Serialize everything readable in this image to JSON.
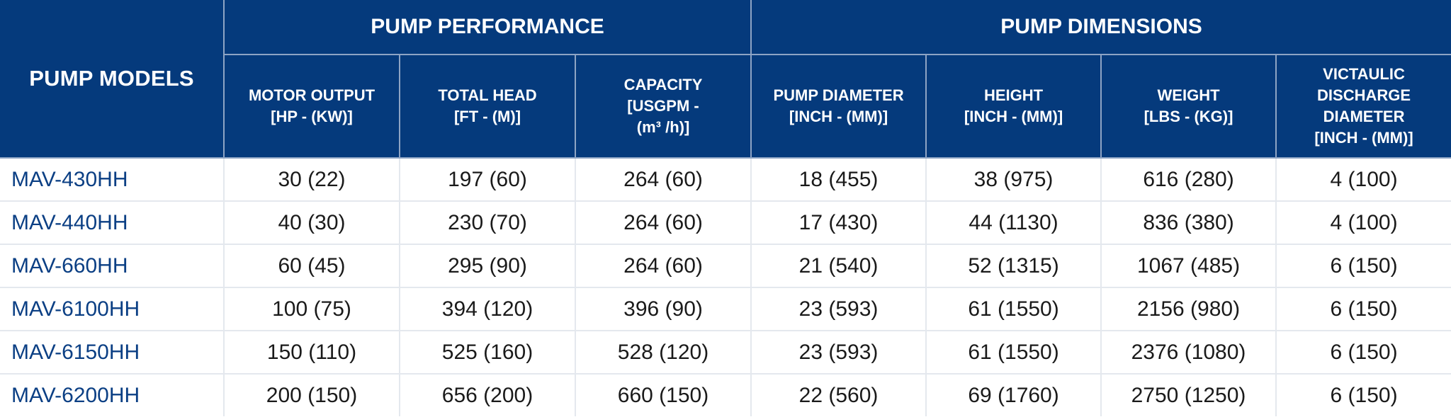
{
  "header": {
    "models_label": "PUMP MODELS",
    "performance_label": "PUMP PERFORMANCE",
    "dimensions_label": "PUMP DIMENSIONS",
    "columns": [
      {
        "line1": "MOTOR OUTPUT",
        "line2": "[HP - (KW)]"
      },
      {
        "line1": "TOTAL HEAD",
        "line2": "[FT - (M)]"
      },
      {
        "line1": "CAPACITY",
        "line2": "[USGPM -",
        "line3": "(m³ /h)]"
      },
      {
        "line1": "PUMP DIAMETER",
        "line2": "[INCH - (MM)]"
      },
      {
        "line1": "HEIGHT",
        "line2": "[INCH - (MM)]"
      },
      {
        "line1": "WEIGHT",
        "line2": "[LBS - (KG)]"
      },
      {
        "line1": "VICTAULIC",
        "line2": "DISCHARGE",
        "line3": "DIAMETER",
        "line4": "[INCH - (MM)]"
      }
    ]
  },
  "rows": [
    {
      "model": "MAV-430HH",
      "motor": "30 (22)",
      "head": "197 (60)",
      "capacity": "264 (60)",
      "diameter": "18 (455)",
      "height": "38 (975)",
      "weight": "616 (280)",
      "discharge": "4 (100)"
    },
    {
      "model": "MAV-440HH",
      "motor": "40 (30)",
      "head": "230 (70)",
      "capacity": "264 (60)",
      "diameter": "17 (430)",
      "height": "44 (1130)",
      "weight": "836 (380)",
      "discharge": "4 (100)"
    },
    {
      "model": "MAV-660HH",
      "motor": "60 (45)",
      "head": "295 (90)",
      "capacity": "264 (60)",
      "diameter": "21 (540)",
      "height": "52 (1315)",
      "weight": "1067 (485)",
      "discharge": "6 (150)"
    },
    {
      "model": "MAV-6100HH",
      "motor": "100 (75)",
      "head": "394 (120)",
      "capacity": "396 (90)",
      "diameter": "23 (593)",
      "height": "61 (1550)",
      "weight": "2156 (980)",
      "discharge": "6 (150)"
    },
    {
      "model": "MAV-6150HH",
      "motor": "150 (110)",
      "head": "525 (160)",
      "capacity": "528 (120)",
      "diameter": "23 (593)",
      "height": "61 (1550)",
      "weight": "2376 (1080)",
      "discharge": "6 (150)"
    },
    {
      "model": "MAV-6200HH",
      "motor": "200 (150)",
      "head": "656 (200)",
      "capacity": "660 (150)",
      "diameter": "22 (560)",
      "height": "69 (1760)",
      "weight": "2750 (1250)",
      "discharge": "6 (150)"
    }
  ]
}
